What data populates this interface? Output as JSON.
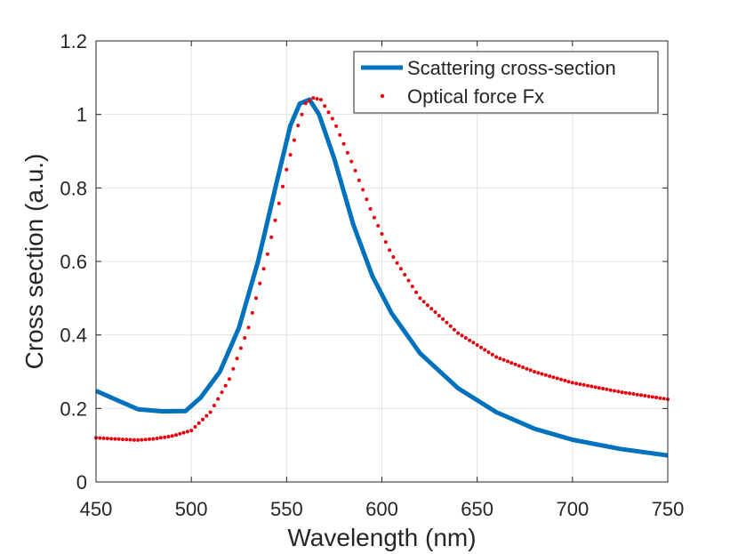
{
  "chart_data": {
    "type": "line",
    "xlabel": "Wavelength (nm)",
    "ylabel": "Cross section (a.u.)",
    "xlim": [
      450,
      750
    ],
    "ylim": [
      0,
      1.2
    ],
    "xticks": [
      450,
      500,
      550,
      600,
      650,
      700,
      750
    ],
    "yticks": [
      0,
      0.2,
      0.4,
      0.6,
      0.8,
      1,
      1.2
    ],
    "xtick_labels": [
      "450",
      "500",
      "550",
      "600",
      "650",
      "700",
      "750"
    ],
    "ytick_labels": [
      "0",
      "0.2",
      "0.4",
      "0.6",
      "0.8",
      "1",
      "1.2"
    ],
    "grid": true,
    "legend_position": "top-right",
    "series": [
      {
        "name": "Scattering cross-section",
        "style": "solid-line",
        "color": "#0072BD",
        "points": [
          [
            450,
            0.248
          ],
          [
            460,
            0.225
          ],
          [
            472,
            0.198
          ],
          [
            485,
            0.192
          ],
          [
            497,
            0.193
          ],
          [
            505,
            0.23
          ],
          [
            515,
            0.3
          ],
          [
            525,
            0.42
          ],
          [
            535,
            0.6
          ],
          [
            545,
            0.82
          ],
          [
            552,
            0.97
          ],
          [
            557,
            1.03
          ],
          [
            562,
            1.04
          ],
          [
            567,
            1.0
          ],
          [
            575,
            0.88
          ],
          [
            585,
            0.7
          ],
          [
            595,
            0.56
          ],
          [
            605,
            0.46
          ],
          [
            620,
            0.35
          ],
          [
            640,
            0.255
          ],
          [
            660,
            0.19
          ],
          [
            680,
            0.145
          ],
          [
            700,
            0.115
          ],
          [
            725,
            0.09
          ],
          [
            750,
            0.072
          ]
        ]
      },
      {
        "name": "Optical force Fx",
        "style": "dotted",
        "color": "#E8000B",
        "points": [
          [
            450,
            0.12
          ],
          [
            460,
            0.117
          ],
          [
            472,
            0.114
          ],
          [
            480,
            0.117
          ],
          [
            490,
            0.125
          ],
          [
            500,
            0.14
          ],
          [
            510,
            0.19
          ],
          [
            520,
            0.28
          ],
          [
            530,
            0.42
          ],
          [
            540,
            0.62
          ],
          [
            550,
            0.85
          ],
          [
            556,
            0.97
          ],
          [
            560,
            1.03
          ],
          [
            564,
            1.045
          ],
          [
            568,
            1.04
          ],
          [
            575,
            0.98
          ],
          [
            585,
            0.86
          ],
          [
            595,
            0.73
          ],
          [
            605,
            0.62
          ],
          [
            620,
            0.5
          ],
          [
            640,
            0.405
          ],
          [
            660,
            0.34
          ],
          [
            680,
            0.3
          ],
          [
            700,
            0.27
          ],
          [
            725,
            0.245
          ],
          [
            750,
            0.225
          ]
        ]
      }
    ]
  }
}
